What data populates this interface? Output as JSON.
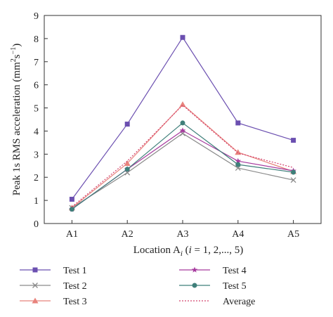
{
  "chart_data": {
    "type": "line",
    "categories": [
      "A1",
      "A2",
      "A3",
      "A4",
      "A5"
    ],
    "xlabel_parts": [
      "Location A",
      "i",
      " (",
      "i",
      " = 1, 2,..., 5)"
    ],
    "ylabel_parts": [
      "Peak 1s RMS acceleration (mm",
      "2",
      "s",
      "−1",
      ")"
    ],
    "ylim": [
      0,
      9
    ],
    "yticks": [
      "0",
      "1",
      "2",
      "3",
      "4",
      "5",
      "6",
      "7",
      "8",
      "9"
    ],
    "grid": false,
    "legend_position": "bottom",
    "series": [
      {
        "name": "Test 1",
        "values": [
          1.05,
          4.3,
          8.05,
          4.35,
          3.6
        ],
        "color": "#6b4fb0",
        "marker": "square",
        "dash": ""
      },
      {
        "name": "Test 2",
        "values": [
          0.68,
          2.2,
          3.9,
          2.4,
          1.88
        ],
        "color": "#8a8a8a",
        "marker": "x",
        "dash": ""
      },
      {
        "name": "Test 3",
        "values": [
          0.68,
          2.6,
          5.15,
          3.08,
          2.25
        ],
        "color": "#e8837c",
        "marker": "triangle",
        "dash": ""
      },
      {
        "name": "Test 4",
        "values": [
          0.62,
          2.35,
          4.02,
          2.7,
          2.28
        ],
        "color": "#a63a9e",
        "marker": "star",
        "dash": ""
      },
      {
        "name": "Test 5",
        "values": [
          0.62,
          2.35,
          4.35,
          2.55,
          2.22
        ],
        "color": "#3f7f7a",
        "marker": "circle",
        "dash": ""
      },
      {
        "name": "Average",
        "values": [
          0.72,
          2.7,
          5.12,
          3.05,
          2.42
        ],
        "color": "#d4446e",
        "marker": "none",
        "dash": "2,2"
      }
    ]
  }
}
